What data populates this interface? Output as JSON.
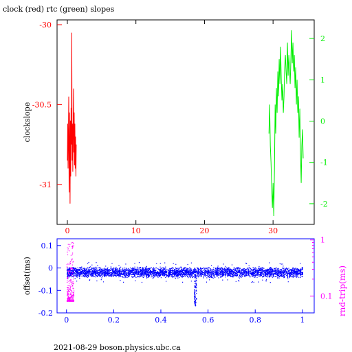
{
  "title": "clock (red) rtc (green) slopes",
  "footer": "2021-08-29  boson.physics.ubc.ca",
  "colors": {
    "clock": "#ff0000",
    "rtc": "#00ee00",
    "offset": "#0000ff",
    "rndtrip": "#ff00ff",
    "axis": "#000000"
  },
  "chart_data": [
    {
      "type": "line",
      "ylabel": "clockslope",
      "ylabel_right": "",
      "xlim": [
        -1.5,
        36
      ],
      "ylim": [
        -31.25,
        -29.97
      ],
      "ylim_right": [
        -2.5,
        2.45
      ],
      "x_ticks": [
        0,
        10,
        20,
        30
      ],
      "x_tick_labels": [
        "0",
        "10",
        "20",
        "30"
      ],
      "y_ticks": [
        -30,
        -30.5,
        -31
      ],
      "y_tick_labels": [
        "-30",
        "-30.5",
        "-31"
      ],
      "y_ticks_right": [
        2,
        1,
        0,
        -1,
        -2
      ],
      "y_tick_labels_right": [
        "2",
        "1",
        "0",
        "-1",
        "-2"
      ],
      "series": [
        {
          "axis": "left",
          "color": "#ff0000",
          "points": [
            [
              0.0,
              -30.85
            ],
            [
              0.05,
              -30.62
            ],
            [
              0.1,
              -30.9
            ],
            [
              0.15,
              -30.7
            ],
            [
              0.2,
              -30.45
            ],
            [
              0.25,
              -31.05
            ],
            [
              0.3,
              -30.55
            ],
            [
              0.35,
              -30.8
            ],
            [
              0.4,
              -31.12
            ],
            [
              0.45,
              -30.6
            ],
            [
              0.5,
              -30.95
            ],
            [
              0.55,
              -30.52
            ],
            [
              0.6,
              -30.75
            ],
            [
              0.65,
              -30.05
            ],
            [
              0.7,
              -30.85
            ],
            [
              0.75,
              -30.62
            ],
            [
              0.8,
              -30.92
            ],
            [
              0.85,
              -30.65
            ],
            [
              0.9,
              -30.4
            ],
            [
              0.95,
              -30.8
            ],
            [
              1.0,
              -30.55
            ],
            [
              1.05,
              -30.88
            ],
            [
              1.1,
              -30.62
            ],
            [
              1.15,
              -30.9
            ],
            [
              1.2,
              -30.7
            ],
            [
              1.25,
              -30.95
            ],
            [
              1.3,
              -30.75
            ]
          ]
        },
        {
          "axis": "right",
          "color": "#00ee00",
          "points": [
            [
              29.4,
              -0.3
            ],
            [
              29.5,
              0.4
            ],
            [
              29.6,
              -0.6
            ],
            [
              29.7,
              -1.0
            ],
            [
              29.8,
              -1.6
            ],
            [
              29.9,
              -2.1
            ],
            [
              30.0,
              -1.5
            ],
            [
              30.1,
              -2.3
            ],
            [
              30.2,
              -1.2
            ],
            [
              30.3,
              0.4
            ],
            [
              30.4,
              -0.3
            ],
            [
              30.5,
              0.8
            ],
            [
              30.6,
              0.2
            ],
            [
              30.7,
              1.2
            ],
            [
              30.8,
              0.6
            ],
            [
              30.9,
              1.5
            ],
            [
              31.0,
              0.9
            ],
            [
              31.1,
              1.8
            ],
            [
              31.2,
              1.0
            ],
            [
              31.3,
              0.5
            ],
            [
              31.4,
              0.9
            ],
            [
              31.5,
              0.2
            ],
            [
              31.6,
              0.6
            ],
            [
              31.7,
              1.3
            ],
            [
              31.8,
              1.6
            ],
            [
              31.9,
              1.2
            ],
            [
              32.0,
              0.9
            ],
            [
              32.1,
              1.9
            ],
            [
              32.2,
              1.1
            ],
            [
              32.3,
              1.6
            ],
            [
              32.4,
              1.3
            ],
            [
              32.5,
              0.9
            ],
            [
              32.6,
              1.5
            ],
            [
              32.7,
              2.2
            ],
            [
              32.8,
              1.4
            ],
            [
              32.9,
              1.9
            ],
            [
              33.0,
              1.2
            ],
            [
              33.1,
              1.6
            ],
            [
              33.2,
              0.8
            ],
            [
              33.3,
              1.3
            ],
            [
              33.4,
              0.4
            ],
            [
              33.5,
              1.0
            ],
            [
              33.6,
              0.2
            ],
            [
              33.7,
              0.6
            ],
            [
              33.8,
              -0.4
            ],
            [
              33.9,
              0.3
            ],
            [
              34.0,
              -0.8
            ],
            [
              34.1,
              -1.5
            ],
            [
              34.2,
              -0.6
            ],
            [
              34.3,
              -0.2
            ],
            [
              34.4,
              -0.9
            ]
          ]
        }
      ]
    },
    {
      "type": "scatter",
      "ylabel": "offset(ms)",
      "ylabel_right": "rnd-trip(ms)",
      "xlim": [
        -0.04,
        1.05
      ],
      "ylim": [
        -0.2,
        0.13
      ],
      "y_scale_right": "log",
      "ylim_right": [
        0.05,
        1.05
      ],
      "x_ticks": [
        0,
        0.2,
        0.4,
        0.6,
        0.8,
        1
      ],
      "x_tick_labels": [
        "0",
        "0.2",
        "0.4",
        "0.6",
        "0.8",
        "1"
      ],
      "y_ticks": [
        0.1,
        0,
        -0.1,
        -0.2
      ],
      "y_tick_labels": [
        "0.1",
        "0",
        "-0.1",
        "-0.2"
      ],
      "y_ticks_right": [
        1,
        0.1
      ],
      "y_tick_labels_right": [
        "1",
        "0.1"
      ],
      "series": [
        {
          "name": "offset",
          "color": "#0000ff",
          "band_center": -0.02,
          "band_halfwidth": 0.025,
          "x_range": [
            0,
            1
          ],
          "spike_x": [
            0.54,
            0.55
          ],
          "spike_y_min": -0.17
        },
        {
          "name": "rnd-trip",
          "color": "#ff00ff",
          "x_range": [
            0,
            0.03
          ],
          "y_range": [
            0.08,
            0.95
          ]
        }
      ]
    }
  ]
}
